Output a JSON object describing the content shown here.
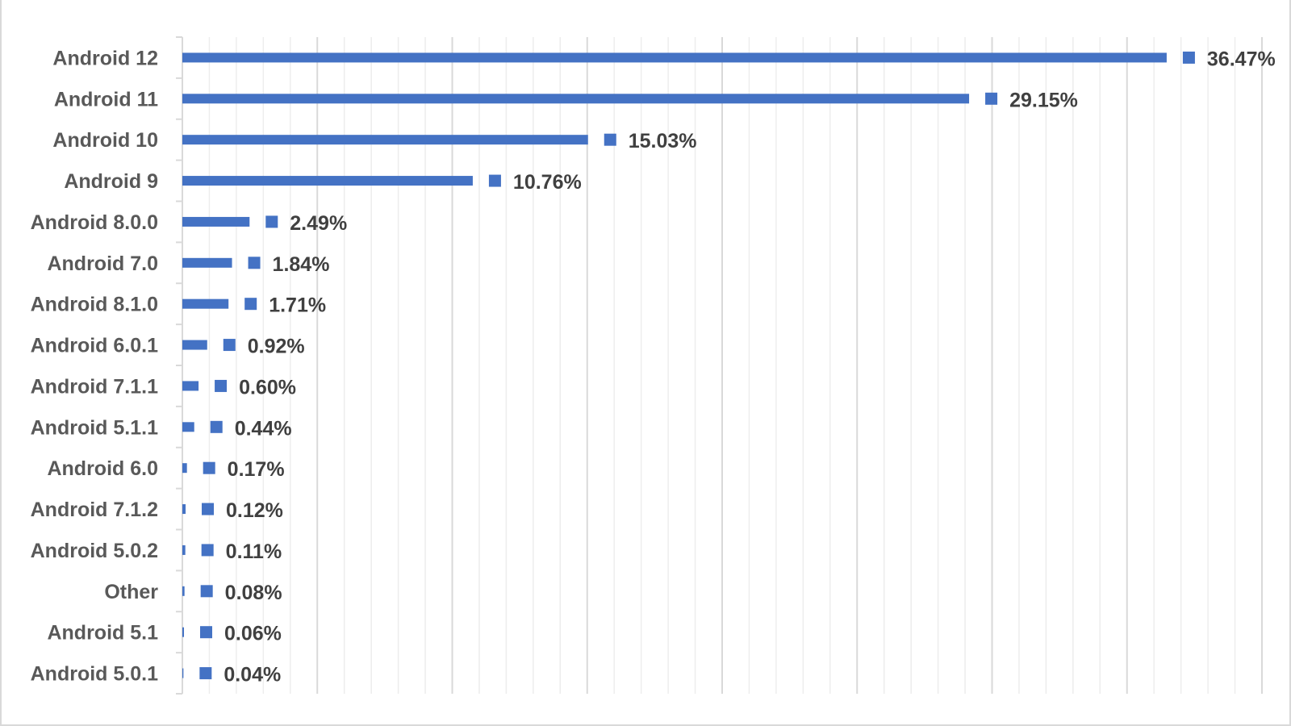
{
  "chart_data": {
    "type": "bar",
    "orientation": "horizontal",
    "categories": [
      "Android 12",
      "Android 11",
      "Android 10",
      "Android 9",
      "Android 8.0.0",
      "Android 7.0",
      "Android 8.1.0",
      "Android 6.0.1",
      "Android 7.1.1",
      "Android 5.1.1",
      "Android 6.0",
      "Android 7.1.2",
      "Android 5.0.2",
      "Other",
      "Android 5.1",
      "Android 5.0.1"
    ],
    "values": [
      36.47,
      29.15,
      15.03,
      10.76,
      2.49,
      1.84,
      1.71,
      0.92,
      0.6,
      0.44,
      0.17,
      0.12,
      0.11,
      0.08,
      0.06,
      0.04
    ],
    "value_labels": [
      "36.47%",
      "29.15%",
      "15.03%",
      "10.76%",
      "2.49%",
      "1.84%",
      "1.71%",
      "0.92%",
      "0.60%",
      "0.44%",
      "0.17%",
      "0.12%",
      "0.11%",
      "0.08%",
      "0.06%",
      "0.04%"
    ],
    "title": "",
    "xlabel": "",
    "ylabel": "",
    "xlim": [
      0,
      40
    ],
    "grid": true,
    "legend": "none",
    "colors": {
      "bar": "#4472c4",
      "grid_major": "#d9d9d9",
      "grid_minor": "#ededed",
      "axis": "#d9d9d9"
    }
  }
}
